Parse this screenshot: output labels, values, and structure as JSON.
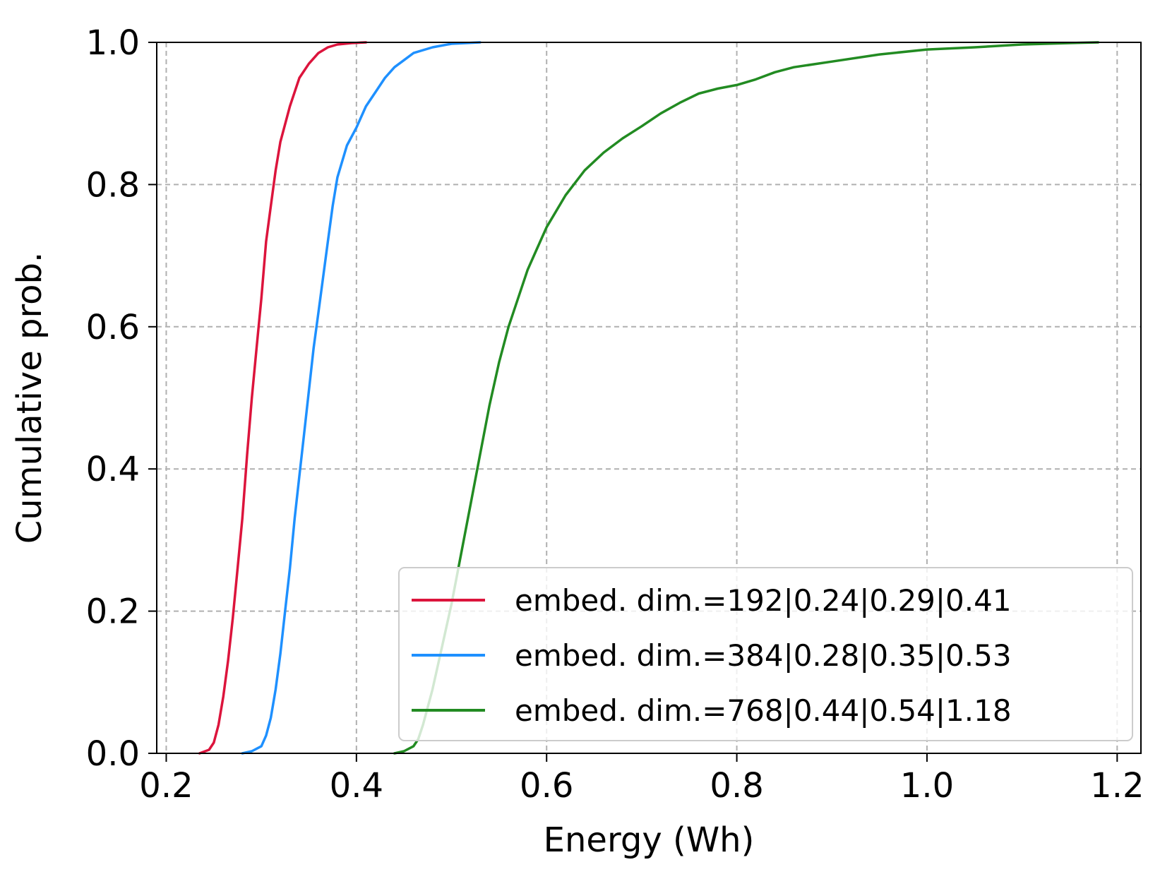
{
  "chart_data": {
    "type": "line",
    "title": "",
    "xlabel": "Energy (Wh)",
    "ylabel": "Cumulative prob.",
    "xlim": [
      0.19,
      1.225
    ],
    "ylim": [
      0.0,
      1.0
    ],
    "xticks": [
      0.2,
      0.4,
      0.6,
      0.8,
      1.0,
      1.2
    ],
    "xtick_labels": [
      "0.2",
      "0.4",
      "0.6",
      "0.8",
      "1.0",
      "1.2"
    ],
    "yticks": [
      0.0,
      0.2,
      0.4,
      0.6,
      0.8,
      1.0
    ],
    "ytick_labels": [
      "0.0",
      "0.2",
      "0.4",
      "0.6",
      "0.8",
      "1.0"
    ],
    "grid": true,
    "legend_position": "lower-right",
    "series": [
      {
        "name": "embed. dim.=192|0.24|0.29|0.41",
        "color": "#dc143c",
        "points": [
          [
            0.235,
            0.0
          ],
          [
            0.245,
            0.005
          ],
          [
            0.25,
            0.015
          ],
          [
            0.255,
            0.04
          ],
          [
            0.26,
            0.08
          ],
          [
            0.265,
            0.13
          ],
          [
            0.27,
            0.19
          ],
          [
            0.275,
            0.26
          ],
          [
            0.28,
            0.33
          ],
          [
            0.285,
            0.42
          ],
          [
            0.29,
            0.5
          ],
          [
            0.295,
            0.57
          ],
          [
            0.3,
            0.64
          ],
          [
            0.305,
            0.72
          ],
          [
            0.31,
            0.77
          ],
          [
            0.315,
            0.82
          ],
          [
            0.32,
            0.86
          ],
          [
            0.33,
            0.91
          ],
          [
            0.34,
            0.95
          ],
          [
            0.35,
            0.97
          ],
          [
            0.36,
            0.985
          ],
          [
            0.37,
            0.993
          ],
          [
            0.38,
            0.997
          ],
          [
            0.395,
            0.999
          ],
          [
            0.41,
            1.0
          ]
        ]
      },
      {
        "name": "embed. dim.=384|0.28|0.35|0.53",
        "color": "#1e90ff",
        "points": [
          [
            0.28,
            0.0
          ],
          [
            0.29,
            0.003
          ],
          [
            0.3,
            0.01
          ],
          [
            0.305,
            0.025
          ],
          [
            0.31,
            0.05
          ],
          [
            0.315,
            0.09
          ],
          [
            0.32,
            0.14
          ],
          [
            0.325,
            0.2
          ],
          [
            0.33,
            0.26
          ],
          [
            0.335,
            0.33
          ],
          [
            0.34,
            0.39
          ],
          [
            0.345,
            0.45
          ],
          [
            0.35,
            0.51
          ],
          [
            0.355,
            0.57
          ],
          [
            0.36,
            0.62
          ],
          [
            0.365,
            0.67
          ],
          [
            0.37,
            0.72
          ],
          [
            0.375,
            0.77
          ],
          [
            0.38,
            0.81
          ],
          [
            0.39,
            0.855
          ],
          [
            0.4,
            0.88
          ],
          [
            0.41,
            0.91
          ],
          [
            0.42,
            0.93
          ],
          [
            0.43,
            0.95
          ],
          [
            0.44,
            0.965
          ],
          [
            0.45,
            0.975
          ],
          [
            0.46,
            0.985
          ],
          [
            0.48,
            0.993
          ],
          [
            0.5,
            0.998
          ],
          [
            0.53,
            1.0
          ]
        ]
      },
      {
        "name": "embed. dim.=768|0.44|0.54|1.18",
        "color": "#228b22",
        "points": [
          [
            0.44,
            0.0
          ],
          [
            0.45,
            0.003
          ],
          [
            0.46,
            0.01
          ],
          [
            0.465,
            0.02
          ],
          [
            0.47,
            0.04
          ],
          [
            0.48,
            0.09
          ],
          [
            0.49,
            0.15
          ],
          [
            0.5,
            0.21
          ],
          [
            0.51,
            0.28
          ],
          [
            0.52,
            0.35
          ],
          [
            0.53,
            0.42
          ],
          [
            0.54,
            0.49
          ],
          [
            0.55,
            0.55
          ],
          [
            0.56,
            0.6
          ],
          [
            0.57,
            0.64
          ],
          [
            0.58,
            0.68
          ],
          [
            0.59,
            0.71
          ],
          [
            0.6,
            0.74
          ],
          [
            0.62,
            0.785
          ],
          [
            0.64,
            0.82
          ],
          [
            0.66,
            0.845
          ],
          [
            0.68,
            0.865
          ],
          [
            0.7,
            0.882
          ],
          [
            0.72,
            0.9
          ],
          [
            0.74,
            0.915
          ],
          [
            0.76,
            0.928
          ],
          [
            0.78,
            0.935
          ],
          [
            0.8,
            0.94
          ],
          [
            0.82,
            0.948
          ],
          [
            0.84,
            0.958
          ],
          [
            0.86,
            0.965
          ],
          [
            0.9,
            0.973
          ],
          [
            0.95,
            0.983
          ],
          [
            1.0,
            0.99
          ],
          [
            1.05,
            0.993
          ],
          [
            1.1,
            0.997
          ],
          [
            1.15,
            0.999
          ],
          [
            1.18,
            1.0
          ]
        ]
      }
    ]
  }
}
